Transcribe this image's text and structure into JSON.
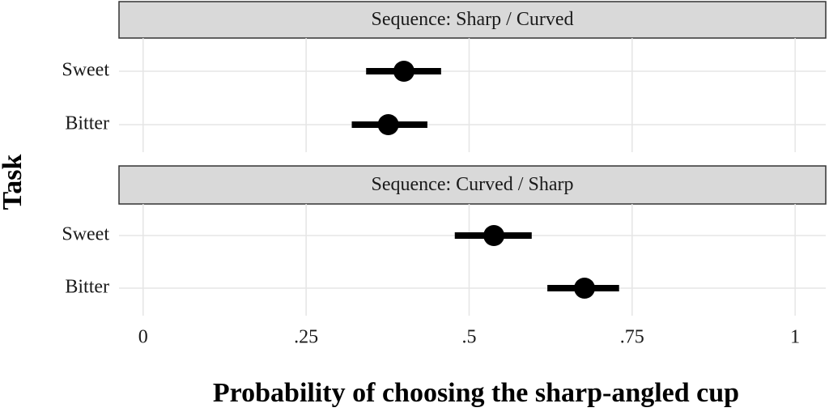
{
  "chart_data": [
    {
      "type": "pointrange",
      "title": "Sequence: Sharp / Curved",
      "categories": [
        "Sweet",
        "Bitter"
      ],
      "values": [
        0.4,
        0.376
      ],
      "low": [
        0.342,
        0.32
      ],
      "high": [
        0.457,
        0.436
      ],
      "color": "#000000",
      "xlim": [
        -0.037,
        1.047
      ],
      "xticks": [
        0,
        {
          "value": 0.25,
          "label": ".25"
        },
        {
          "value": 0.5,
          "label": ".5"
        },
        {
          "value": 0.75,
          "label": ".75"
        },
        1
      ],
      "grid": true
    },
    {
      "type": "pointrange",
      "title": "Sequence: Curved / Sharp",
      "categories": [
        "Sweet",
        "Bitter"
      ],
      "values": [
        0.538,
        0.677
      ],
      "low": [
        0.478,
        0.62
      ],
      "high": [
        0.596,
        0.73
      ],
      "color": "#000000",
      "xlim": [
        -0.037,
        1.047
      ],
      "xticks": [
        0,
        {
          "value": 0.25,
          "label": ".25"
        },
        {
          "value": 0.5,
          "label": ".5"
        },
        {
          "value": 0.75,
          "label": ".75"
        },
        1
      ],
      "grid": true,
      "xlabel": "Probability of choosing the sharp-angled cup",
      "ylabel": "Task"
    }
  ]
}
